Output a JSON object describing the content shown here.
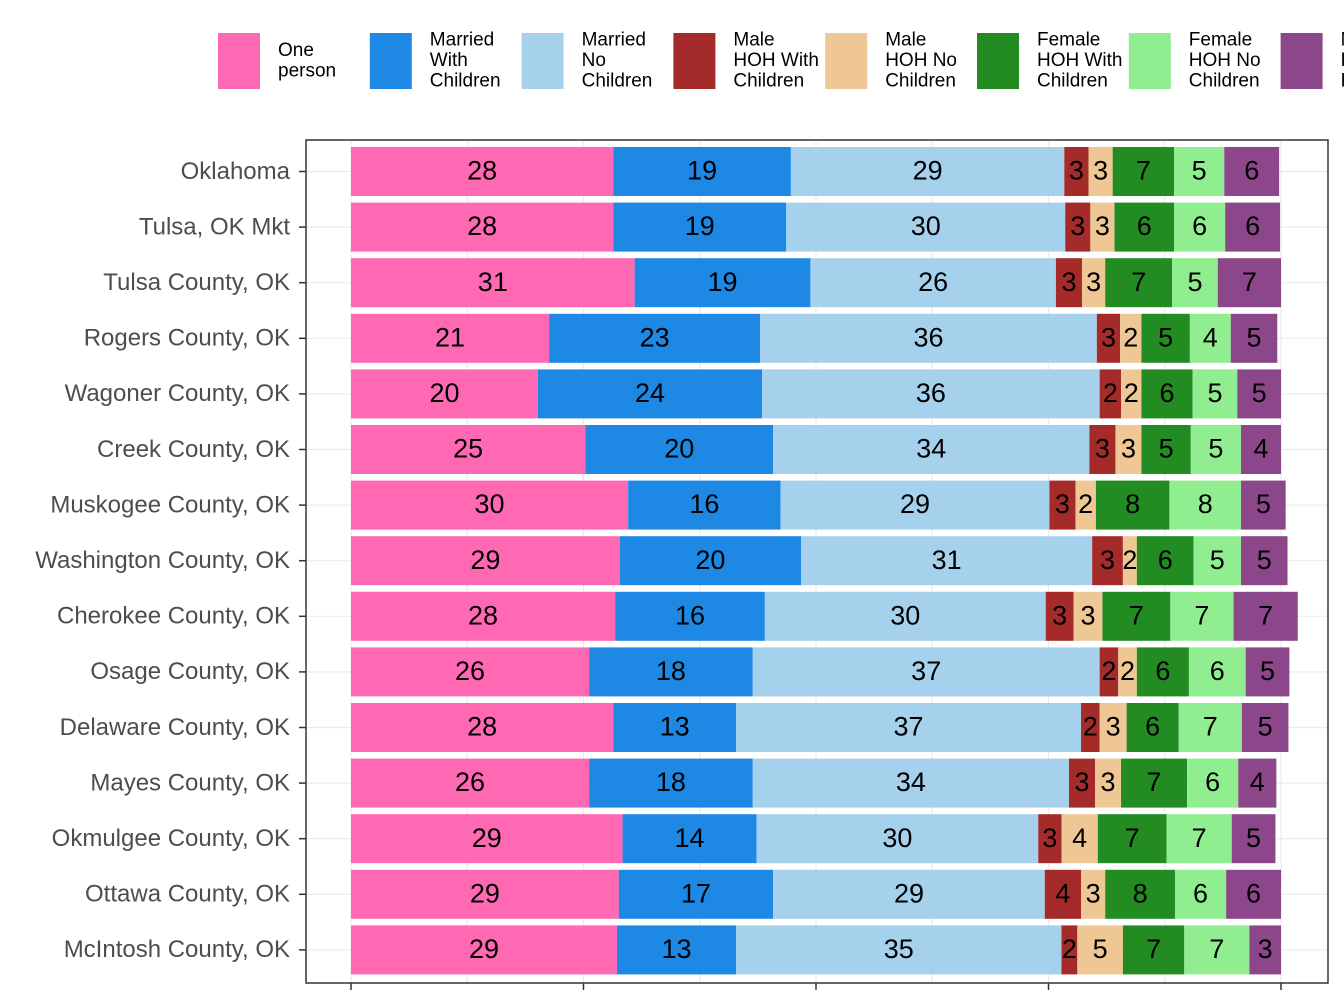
{
  "chart_data": {
    "type": "bar",
    "orientation": "horizontal",
    "stacked": true,
    "title": "",
    "xlabel": "",
    "ylabel": "",
    "xlim": [
      0,
      100
    ],
    "grid": true,
    "legend_position": "top",
    "categories": [
      "Oklahoma",
      "Tulsa, OK Mkt",
      "Tulsa County, OK",
      "Rogers County, OK",
      "Wagoner County, OK",
      "Creek County, OK",
      "Muskogee County, OK",
      "Washington County, OK",
      "Cherokee County, OK",
      "Osage County, OK",
      "Delaware County, OK",
      "Mayes County, OK",
      "Okmulgee County, OK",
      "Ottawa County, OK",
      "McIntosh County, OK"
    ],
    "series": [
      {
        "name": "One person",
        "legend_lines": [
          "One",
          "person"
        ],
        "color": "#FF69B4",
        "values": [
          28.2,
          28.2,
          30.5,
          21.3,
          20.1,
          25.2,
          29.8,
          28.9,
          28.4,
          25.6,
          28.2,
          25.6,
          29.2,
          28.8,
          28.6
        ]
      },
      {
        "name": "Married With Children",
        "legend_lines": [
          "Married",
          "With",
          "Children"
        ],
        "color": "#1E88E5",
        "values": [
          19.1,
          18.6,
          18.9,
          22.7,
          24.1,
          20.2,
          16.4,
          19.5,
          16.1,
          17.6,
          13.2,
          17.6,
          14.4,
          16.6,
          12.8
        ]
      },
      {
        "name": "Married No Children",
        "legend_lines": [
          "Married",
          "No",
          "Children"
        ],
        "color": "#A6D1EC",
        "values": [
          29.4,
          30.0,
          26.4,
          36.2,
          36.3,
          34.0,
          28.9,
          31.3,
          30.2,
          37.3,
          37.1,
          34.0,
          30.3,
          29.2,
          35.0
        ]
      },
      {
        "name": "Male HOH With Children",
        "legend_lines": [
          "Male",
          "HOH With",
          "Children"
        ],
        "color": "#A52A2A",
        "values": [
          2.6,
          2.7,
          2.8,
          2.5,
          2.3,
          2.8,
          2.8,
          3.3,
          3.0,
          2.0,
          2.0,
          2.8,
          2.5,
          3.9,
          1.7
        ]
      },
      {
        "name": "Male HOH No Children",
        "legend_lines": [
          "Male",
          "HOH No",
          "Children"
        ],
        "color": "#EEC795",
        "values": [
          2.6,
          2.6,
          2.5,
          2.3,
          2.2,
          2.8,
          2.2,
          1.5,
          3.1,
          2.0,
          2.9,
          2.8,
          3.9,
          2.6,
          4.9
        ]
      },
      {
        "name": "Female HOH With Children",
        "legend_lines": [
          "Female",
          "HOH With",
          "Children"
        ],
        "color": "#228B22",
        "values": [
          6.6,
          6.4,
          7.2,
          5.2,
          5.5,
          5.3,
          7.9,
          6.1,
          7.3,
          5.6,
          5.6,
          7.1,
          7.4,
          7.5,
          6.6
        ]
      },
      {
        "name": "Female HOH No Children",
        "legend_lines": [
          "Female",
          "HOH No",
          "Children"
        ],
        "color": "#90EE90",
        "values": [
          5.4,
          5.5,
          4.9,
          4.4,
          4.8,
          5.4,
          7.7,
          5.1,
          6.8,
          6.1,
          6.8,
          5.5,
          7.0,
          5.5,
          7.0
        ]
      },
      {
        "name": "Non-Family Households",
        "legend_lines": [
          "N",
          "F",
          "H"
        ],
        "color": "#8B4789",
        "values": [
          5.9,
          5.9,
          6.8,
          5.0,
          4.7,
          4.3,
          4.8,
          5.0,
          6.9,
          4.7,
          5.0,
          4.1,
          4.7,
          5.9,
          3.4
        ]
      }
    ]
  }
}
